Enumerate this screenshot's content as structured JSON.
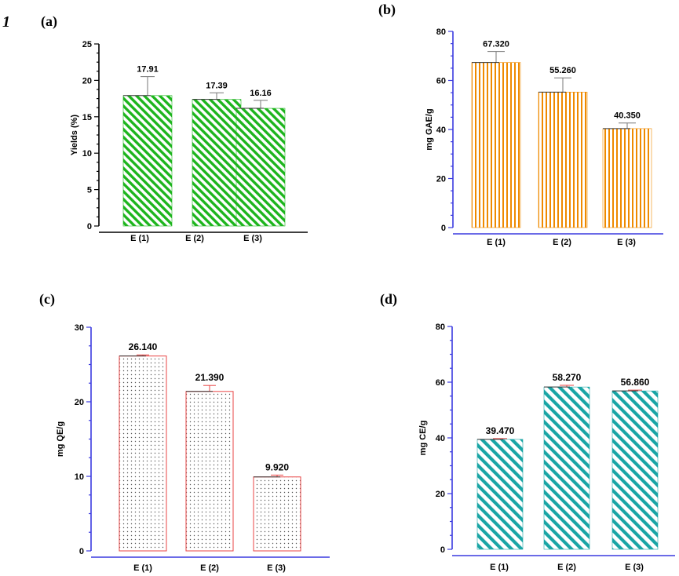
{
  "figure": {
    "number": "1"
  },
  "chart_data": [
    {
      "panel": "(a)",
      "type": "bar",
      "title": "",
      "xlabel": "",
      "ylabel": "Yields (%)",
      "categories": [
        "E (1)",
        "E (2)",
        "E (3)"
      ],
      "values": [
        17.91,
        17.39,
        16.16
      ],
      "value_labels": [
        "17.91",
        "17.39",
        "16.16"
      ],
      "errors": [
        2.6,
        0.9,
        1.1
      ],
      "ylim": [
        0,
        25
      ],
      "yticks": [
        0,
        5,
        10,
        15,
        20,
        25
      ],
      "grid": false,
      "colors": {
        "bar": "#1db51d",
        "axis": "#000000",
        "error": "#777777"
      },
      "pattern": "diag-left"
    },
    {
      "panel": "(b)",
      "type": "bar",
      "title": "",
      "xlabel": "",
      "ylabel": "mg GAE/g",
      "categories": [
        "E (1)",
        "E (2)",
        "E (3)"
      ],
      "values": [
        67.32,
        55.26,
        40.35
      ],
      "value_labels": [
        "67.320",
        "55.260",
        "40.350"
      ],
      "errors": [
        4.5,
        5.8,
        2.3
      ],
      "ylim": [
        0,
        80
      ],
      "yticks": [
        0,
        20,
        40,
        60,
        80
      ],
      "grid": false,
      "colors": {
        "bar": "#ef8a00",
        "axis": "#3a3adf",
        "error": "#777777"
      },
      "pattern": "vertical"
    },
    {
      "panel": "(c)",
      "type": "bar",
      "title": "",
      "xlabel": "",
      "ylabel": "mg QE/g",
      "categories": [
        "E (1)",
        "E (2)",
        "E (3)"
      ],
      "values": [
        26.14,
        21.39,
        9.92
      ],
      "value_labels": [
        "26.140",
        "21.390",
        "9.920"
      ],
      "errors": [
        0.15,
        0.8,
        0.25
      ],
      "ylim": [
        0,
        30
      ],
      "yticks": [
        0,
        10,
        20,
        30
      ],
      "grid": false,
      "colors": {
        "bar": "#e84545",
        "axis": "#3a3adf",
        "error": "#e84545"
      },
      "pattern": "dots"
    },
    {
      "panel": "(d)",
      "type": "bar",
      "title": "",
      "xlabel": "",
      "ylabel": "mg CE/g",
      "categories": [
        "E (1)",
        "E (2)",
        "E (3)"
      ],
      "values": [
        39.47,
        58.27,
        56.86
      ],
      "value_labels": [
        "39.470",
        "58.270",
        "56.860"
      ],
      "errors": [
        0.3,
        0.6,
        0.3
      ],
      "ylim": [
        0,
        80
      ],
      "yticks": [
        0,
        20,
        40,
        60,
        80
      ],
      "grid": false,
      "colors": {
        "bar": "#19a5a5",
        "axis": "#3a3adf",
        "error": "#e84545"
      },
      "pattern": "diag-left"
    }
  ]
}
